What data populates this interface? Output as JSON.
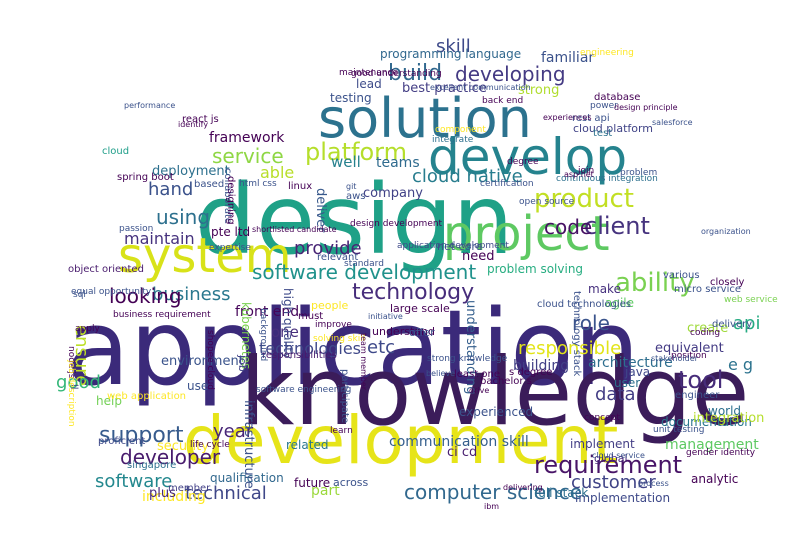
{
  "wordcloud": {
    "words": [
      {
        "text": "application",
        "color": "#3b2a7a"
      },
      {
        "text": "knowledge",
        "color": "#3b1c5a"
      },
      {
        "text": "design",
        "color": "#1fa187"
      },
      {
        "text": "development",
        "color": "#e6e419"
      },
      {
        "text": "solution",
        "color": "#2c728e"
      },
      {
        "text": "develop",
        "color": "#25838e"
      },
      {
        "text": "system",
        "color": "#d8e219"
      },
      {
        "text": "project",
        "color": "#5ec962"
      },
      {
        "text": "software development",
        "color": "#20928c"
      },
      {
        "text": "developing",
        "color": "#443a83"
      },
      {
        "text": "build",
        "color": "#31688e"
      },
      {
        "text": "skill",
        "color": "#3e4a89"
      },
      {
        "text": "platform",
        "color": "#b5de2b"
      },
      {
        "text": "service",
        "color": "#8fd744"
      },
      {
        "text": "cloud native",
        "color": "#287d8e"
      },
      {
        "text": "product",
        "color": "#c2df23"
      },
      {
        "text": "client",
        "color": "#46337e"
      },
      {
        "text": "code",
        "color": "#471164"
      },
      {
        "text": "ability",
        "color": "#7ad151"
      },
      {
        "text": "technology",
        "color": "#472d7b"
      },
      {
        "text": "business",
        "color": "#2a788e"
      },
      {
        "text": "provide",
        "color": "#482475"
      },
      {
        "text": "looking",
        "color": "#440154"
      },
      {
        "text": "using",
        "color": "#2d708e"
      },
      {
        "text": "maintain",
        "color": "#46327e"
      },
      {
        "text": "hand",
        "color": "#3b528b"
      },
      {
        "text": "role",
        "color": "#3a548c"
      },
      {
        "text": "api",
        "color": "#25ab82"
      },
      {
        "text": "data",
        "color": "#433e85"
      },
      {
        "text": "tool",
        "color": "#472c7a"
      },
      {
        "text": "e g",
        "color": "#2c738e"
      },
      {
        "text": "support",
        "color": "#375b8d"
      },
      {
        "text": "year",
        "color": "#482677"
      },
      {
        "text": "developer",
        "color": "#481b6d"
      },
      {
        "text": "software",
        "color": "#23888e"
      },
      {
        "text": "technical",
        "color": "#3f4788"
      },
      {
        "text": "requirement",
        "color": "#481467"
      },
      {
        "text": "customer",
        "color": "#414487"
      },
      {
        "text": "computer science",
        "color": "#31688e"
      },
      {
        "text": "responsible",
        "color": "#e2e418"
      },
      {
        "text": "ensure",
        "color": "#bddf26"
      },
      {
        "text": "good",
        "color": "#35b779"
      },
      {
        "text": "etc",
        "color": "#3e4989"
      },
      {
        "text": "technologies",
        "color": "#3f4889"
      },
      {
        "text": "framework",
        "color": "#440154"
      },
      {
        "text": "deployment",
        "color": "#2d708e"
      },
      {
        "text": "able",
        "color": "#b8de29"
      },
      {
        "text": "company",
        "color": "#414287"
      },
      {
        "text": "well",
        "color": "#26818e"
      },
      {
        "text": "teams",
        "color": "#2f6b8e"
      },
      {
        "text": "including",
        "color": "#fde725"
      },
      {
        "text": "part",
        "color": "#9bd93c"
      },
      {
        "text": "management",
        "color": "#5ec962"
      },
      {
        "text": "documentation",
        "color": "#2a788e"
      },
      {
        "text": "communication skill",
        "color": "#355f8d"
      },
      {
        "text": "ci cd",
        "color": "#481f70"
      },
      {
        "text": "architecture",
        "color": "#2e6e8e"
      },
      {
        "text": "building",
        "color": "#424086"
      },
      {
        "text": "problem solving",
        "color": "#27ad81"
      },
      {
        "text": "front end",
        "color": "#450559"
      },
      {
        "text": "environment",
        "color": "#3a538b"
      },
      {
        "text": "familiar",
        "color": "#3b528b"
      },
      {
        "text": "programming language",
        "color": "#31688e"
      },
      {
        "text": "best practice",
        "color": "#433d84"
      },
      {
        "text": "strong",
        "color": "#b0dd2f"
      },
      {
        "text": "lead",
        "color": "#3e4c8a"
      },
      {
        "text": "testing",
        "color": "#3b528b"
      },
      {
        "text": "cloud platform",
        "color": "#414487"
      },
      {
        "text": "make",
        "color": "#46307e"
      },
      {
        "text": "create",
        "color": "#9fda3a"
      },
      {
        "text": "equivalent",
        "color": "#443b84"
      },
      {
        "text": "need",
        "color": "#440154"
      },
      {
        "text": "one",
        "color": "#472f7d"
      },
      {
        "text": "deliver",
        "color": "#38598c"
      },
      {
        "text": "infrastructure",
        "color": "#3b528b"
      },
      {
        "text": "security",
        "color": "#fde725"
      },
      {
        "text": "plus",
        "color": "#482878"
      },
      {
        "text": "implementation",
        "color": "#3e4989"
      },
      {
        "text": "understanding",
        "color": "#355f8d"
      },
      {
        "text": "java",
        "color": "#3f4788"
      },
      {
        "text": "experienced",
        "color": "#3b528b"
      },
      {
        "text": "aws",
        "color": "#3b528b"
      },
      {
        "text": "kubernetes",
        "color": "#7ad151"
      },
      {
        "text": "related",
        "color": "#2a778e"
      },
      {
        "text": "integration",
        "color": "#b5de2b"
      },
      {
        "text": "world",
        "color": "#2d708e"
      },
      {
        "text": "user",
        "color": "#2d708e"
      },
      {
        "text": "implement",
        "color": "#433e85"
      },
      {
        "text": "qualification",
        "color": "#31688e"
      },
      {
        "text": "future",
        "color": "#440154"
      },
      {
        "text": "full stack",
        "color": "#2d708e"
      },
      {
        "text": "across",
        "color": "#3b528b"
      },
      {
        "text": "global",
        "color": "#482677"
      },
      {
        "text": "high quality",
        "color": "#3e4a89"
      },
      {
        "text": "agile",
        "color": "#5ec962"
      },
      {
        "text": "help",
        "color": "#73d056"
      },
      {
        "text": "use",
        "color": "#3b528b"
      },
      {
        "text": "job",
        "color": "#414487"
      },
      {
        "text": "responsibilities",
        "color": "#481a6c"
      },
      {
        "text": "spring boot",
        "color": "#440154"
      },
      {
        "text": "object oriented",
        "color": "#481b6d"
      },
      {
        "text": "cloud",
        "color": "#1f9e89"
      },
      {
        "text": "ll",
        "color": "#3f4788"
      },
      {
        "text": "web application",
        "color": "#fde725"
      },
      {
        "text": "singapore",
        "color": "#2d708e"
      },
      {
        "text": "proficient",
        "color": "#3e4989"
      },
      {
        "text": "member",
        "color": "#424086"
      },
      {
        "text": "test",
        "color": "#2c728e"
      },
      {
        "text": "rest api",
        "color": "#3b528b"
      },
      {
        "text": "database",
        "color": "#440154"
      },
      {
        "text": "back end",
        "color": "#440154"
      },
      {
        "text": "integrate",
        "color": "#2d708e"
      },
      {
        "text": "component",
        "color": "#fde725"
      },
      {
        "text": "good understanding",
        "color": "#440154"
      },
      {
        "text": "maintenance",
        "color": "#440154"
      },
      {
        "text": "continuous integration",
        "color": "#2d708e"
      },
      {
        "text": "open source",
        "color": "#3b528b"
      },
      {
        "text": "application development",
        "color": "#3e4989"
      },
      {
        "text": "net core",
        "color": "#3b528b"
      },
      {
        "text": "large scale",
        "color": "#440154"
      },
      {
        "text": "people",
        "color": "#fde725"
      },
      {
        "text": "relevant",
        "color": "#3b528b"
      },
      {
        "text": "must",
        "color": "#440154"
      },
      {
        "text": "standard",
        "color": "#3b528b"
      },
      {
        "text": "understand",
        "color": "#440154"
      },
      {
        "text": "offer",
        "color": "#3b528b"
      },
      {
        "text": "improve",
        "color": "#440154"
      },
      {
        "text": "solving skill",
        "color": "#fde725"
      },
      {
        "text": "learn",
        "color": "#440154"
      },
      {
        "text": "expertise",
        "color": "#3b528b"
      },
      {
        "text": "least one",
        "color": "#440154"
      },
      {
        "text": "design development",
        "color": "#440154"
      },
      {
        "text": "cloud technologies",
        "color": "#3b528b"
      },
      {
        "text": "various",
        "color": "#3b528b"
      },
      {
        "text": "micro service",
        "color": "#3b528b"
      },
      {
        "text": "web service",
        "color": "#7ad151"
      },
      {
        "text": "closely",
        "color": "#440154"
      },
      {
        "text": "delivery",
        "color": "#3b528b"
      },
      {
        "text": "position",
        "color": "#440154"
      },
      {
        "text": "engineer",
        "color": "#3b528b"
      },
      {
        "text": "analytic",
        "color": "#440154"
      },
      {
        "text": "technology stack",
        "color": "#3b528b"
      },
      {
        "text": "bachelor s",
        "color": "#440154"
      },
      {
        "text": "s degree",
        "color": "#440154"
      },
      {
        "text": "strong knowledge",
        "color": "#3b528b"
      },
      {
        "text": "engineering",
        "color": "#fde725"
      },
      {
        "text": "html css",
        "color": "#3b528b"
      },
      {
        "text": "linux",
        "color": "#440154"
      },
      {
        "text": "pte ltd",
        "color": "#440154"
      },
      {
        "text": "based",
        "color": "#3b528b"
      },
      {
        "text": "collaborate",
        "color": "#3b528b"
      },
      {
        "text": "designing",
        "color": "#440154"
      },
      {
        "text": "passion",
        "color": "#3b528b"
      },
      {
        "text": "apply",
        "color": "#440154"
      },
      {
        "text": "business requirement",
        "color": "#440154"
      },
      {
        "text": "participate",
        "color": "#3b528b"
      },
      {
        "text": "life cycle",
        "color": "#440154"
      },
      {
        "text": "software engineering",
        "color": "#3b528b"
      },
      {
        "text": "shopee cloud",
        "color": "#440154"
      },
      {
        "text": "equal opportunity",
        "color": "#3b528b"
      },
      {
        "text": "node js",
        "color": "#440154"
      },
      {
        "text": "sql",
        "color": "#3b528b"
      },
      {
        "text": "ibm",
        "color": "#440154"
      },
      {
        "text": "delivering",
        "color": "#440154"
      },
      {
        "text": "cloud service",
        "color": "#3b528b"
      },
      {
        "text": "react js",
        "color": "#440154"
      },
      {
        "text": "git",
        "color": "#3b528b"
      },
      {
        "text": "job description",
        "color": "#fde725"
      },
      {
        "text": "certification",
        "color": "#3b528b"
      },
      {
        "text": "degree",
        "color": "#440154"
      },
      {
        "text": "problem",
        "color": "#3b528b"
      },
      {
        "text": "join",
        "color": "#440154"
      },
      {
        "text": "power",
        "color": "#3b528b"
      },
      {
        "text": "coding",
        "color": "#440154"
      },
      {
        "text": "stakeholder",
        "color": "#3b528b"
      },
      {
        "text": "concept",
        "color": "#440154"
      },
      {
        "text": "unit testing",
        "color": "#3b528b"
      },
      {
        "text": "gender identity",
        "color": "#440154"
      },
      {
        "text": "background",
        "color": "#3b528b"
      },
      {
        "text": "team member",
        "color": "#440154"
      },
      {
        "text": "initiative",
        "color": "#3b528b"
      },
      {
        "text": "experiences",
        "color": "#440154"
      },
      {
        "text": "believe",
        "color": "#3b528b"
      },
      {
        "text": "drive",
        "color": "#440154"
      },
      {
        "text": "process",
        "color": "#3b528b"
      },
      {
        "text": "identify",
        "color": "#440154"
      },
      {
        "text": "performance",
        "color": "#3b528b"
      },
      {
        "text": "shortlisted candidate",
        "color": "#440154"
      },
      {
        "text": "excellent communication",
        "color": "#3b528b"
      },
      {
        "text": "design principle",
        "color": "#440154"
      },
      {
        "text": "salesforce",
        "color": "#3b528b"
      },
      {
        "text": "asp net",
        "color": "#440154"
      },
      {
        "text": "organization",
        "color": "#3b528b"
      },
      {
        "text": "contribute",
        "color": "#440154"
      },
      {
        "text": "working",
        "color": "#3b528b"
      },
      {
        "text": "methodology",
        "color": "#440154"
      }
    ]
  }
}
